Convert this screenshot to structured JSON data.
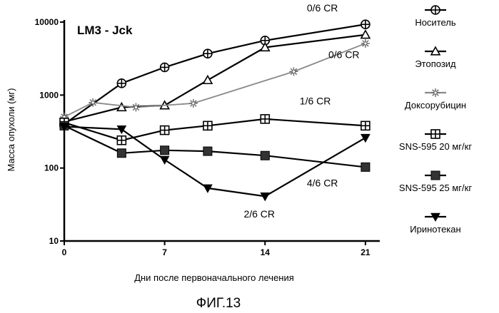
{
  "figure_caption": "ФИГ.13",
  "chart_data": {
    "type": "line",
    "title": "LM3 - Jck",
    "xlabel": "Дни после первоначального лечения",
    "ylabel": "Масса опухоли (мг)",
    "y_scale": "log",
    "xlim": [
      0,
      22
    ],
    "ylim": [
      10,
      10000
    ],
    "x_ticks": [
      0,
      7,
      14,
      21
    ],
    "y_ticks": [
      10,
      100,
      1000,
      10000
    ],
    "x_tick_labels": [
      "0",
      "7",
      "14",
      "21"
    ],
    "y_tick_labels": [
      "10",
      "100",
      "1000",
      "10000"
    ],
    "grid": false,
    "legend_position": "right",
    "series": [
      {
        "name": "Носитель",
        "marker": "circle-cross",
        "x": [
          0,
          4,
          7,
          10,
          14,
          21
        ],
        "y": [
          400,
          1450,
          2400,
          3700,
          5600,
          9300
        ]
      },
      {
        "name": "Этопозид",
        "marker": "triangle",
        "x": [
          0,
          4,
          7,
          10,
          14,
          21
        ],
        "y": [
          430,
          680,
          720,
          1600,
          4500,
          6700
        ]
      },
      {
        "name": "Доксорубицин",
        "marker": "asterisk",
        "x": [
          0,
          2,
          5,
          9,
          16,
          21
        ],
        "y": [
          500,
          790,
          680,
          770,
          2100,
          5100
        ]
      },
      {
        "name": "SNS-595 20 мг/кг",
        "marker": "square-cross",
        "x": [
          0,
          4,
          7,
          10,
          14,
          21
        ],
        "y": [
          420,
          240,
          330,
          380,
          470,
          380
        ]
      },
      {
        "name": "SNS-595 25 мг/кг",
        "marker": "filled-square",
        "x": [
          0,
          4,
          7,
          10,
          14,
          21
        ],
        "y": [
          380,
          160,
          175,
          170,
          148,
          103
        ]
      },
      {
        "name": "Иринотекан",
        "marker": "filled-triangle-down",
        "x": [
          0,
          4,
          7,
          10,
          14,
          21
        ],
        "y": [
          370,
          340,
          130,
          53,
          41,
          260
        ]
      }
    ],
    "annotations": [
      {
        "text": "0/6 CR",
        "x": 18,
        "y": 14000
      },
      {
        "text": "0/6 CR",
        "x": 19.5,
        "y": 3200
      },
      {
        "text": "1/6 CR",
        "x": 17.5,
        "y": 740
      },
      {
        "text": "4/6 CR",
        "x": 18,
        "y": 56
      },
      {
        "text": "2/6 CR",
        "x": 13.6,
        "y": 21
      }
    ]
  }
}
